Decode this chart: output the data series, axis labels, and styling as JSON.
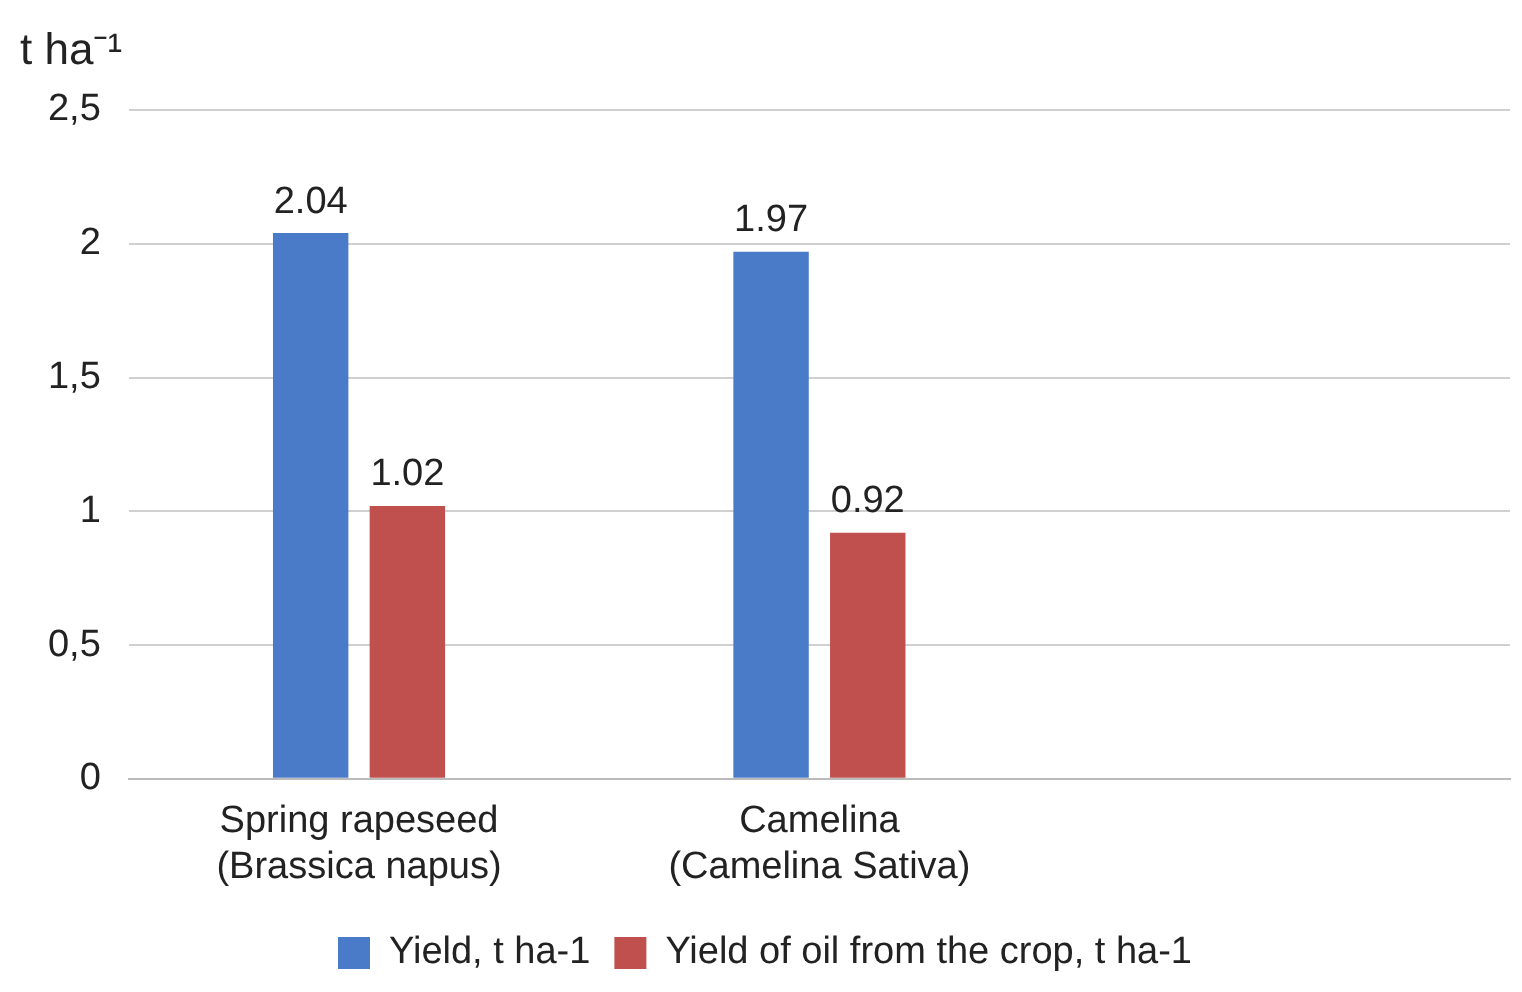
{
  "chart_data": {
    "type": "bar",
    "ylabel": "t ha⁻¹",
    "categories": [
      "Spring rapeseed (Brassica napus)",
      "Camelina (Camelina Sativa)",
      null
    ],
    "series": [
      {
        "name": "Yield, t ha-1",
        "color": "#4a7bc8",
        "values": [
          2.04,
          1.97,
          null
        ]
      },
      {
        "name": "Yield of oil from the crop, t ha-1",
        "color": "#c0504d",
        "values": [
          1.02,
          0.92,
          null
        ]
      }
    ],
    "ylim": [
      0,
      2.5
    ],
    "yticks": [
      0,
      {
        "value": 0.5,
        "label": "0,5"
      },
      1,
      {
        "value": 1.5,
        "label": "1,5"
      },
      2,
      {
        "value": 2.5,
        "label": "2,5"
      }
    ],
    "grid": "y",
    "legend": "bottom",
    "data_labels": true
  }
}
